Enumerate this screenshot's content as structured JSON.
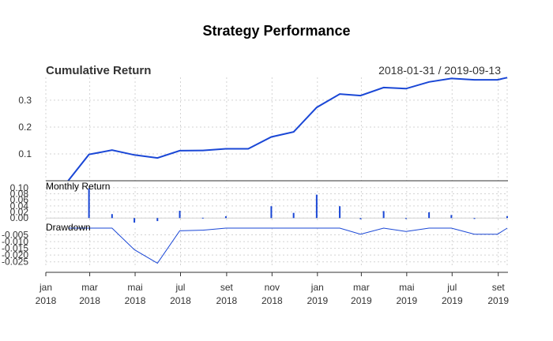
{
  "title": "Strategy Performance",
  "date_range": "2018-01-31 / 2019-09-13",
  "colors": {
    "line": "#1a47d6",
    "grid": "#d3d3d3",
    "axis": "#333333"
  },
  "x_axis": {
    "labels": [
      {
        "date": "2018-01-01",
        "month": "jan",
        "year": "2018"
      },
      {
        "date": "2018-03-01",
        "month": "mar",
        "year": "2018"
      },
      {
        "date": "2018-05-01",
        "month": "mai",
        "year": "2018"
      },
      {
        "date": "2018-07-01",
        "month": "jul",
        "year": "2018"
      },
      {
        "date": "2018-09-01",
        "month": "set",
        "year": "2018"
      },
      {
        "date": "2018-11-01",
        "month": "nov",
        "year": "2018"
      },
      {
        "date": "2019-01-01",
        "month": "jan",
        "year": "2019"
      },
      {
        "date": "2019-03-01",
        "month": "mar",
        "year": "2019"
      },
      {
        "date": "2019-05-01",
        "month": "mai",
        "year": "2019"
      },
      {
        "date": "2019-07-01",
        "month": "jul",
        "year": "2019"
      },
      {
        "date": "2019-09-01",
        "month": "set",
        "year": "2019"
      }
    ]
  },
  "chart_data": [
    {
      "type": "line",
      "title": "Cumulative Return",
      "x": [
        "2018-01-31",
        "2018-02-28",
        "2018-03-31",
        "2018-04-30",
        "2018-05-31",
        "2018-06-30",
        "2018-07-31",
        "2018-08-31",
        "2018-09-30",
        "2018-10-31",
        "2018-11-30",
        "2018-12-31",
        "2019-01-31",
        "2019-02-28",
        "2019-03-31",
        "2019-04-30",
        "2019-05-31",
        "2019-06-30",
        "2019-07-31",
        "2019-08-31",
        "2019-09-13"
      ],
      "series": [
        {
          "values": [
            0.0,
            0.098,
            0.114,
            0.096,
            0.085,
            0.112,
            0.113,
            0.119,
            0.119,
            0.163,
            0.182,
            0.273,
            0.323,
            0.317,
            0.347,
            0.343,
            0.368,
            0.381,
            0.376,
            0.376,
            0.384
          ]
        }
      ],
      "yticks": [
        "0.1",
        "0.2",
        "0.3"
      ],
      "ylim": [
        0.0,
        0.385
      ],
      "grid": true
    },
    {
      "type": "bar",
      "title": "Monthly Return",
      "x": [
        "2018-01-31",
        "2018-02-28",
        "2018-03-31",
        "2018-04-30",
        "2018-05-31",
        "2018-06-30",
        "2018-07-31",
        "2018-08-31",
        "2018-09-30",
        "2018-10-31",
        "2018-11-30",
        "2018-12-31",
        "2019-01-31",
        "2019-02-28",
        "2019-03-31",
        "2019-04-30",
        "2019-05-31",
        "2019-06-30",
        "2019-07-31",
        "2019-08-31",
        "2019-09-13"
      ],
      "values": [
        0.0,
        0.098,
        0.013,
        -0.015,
        -0.01,
        0.024,
        0.001,
        0.006,
        0.0,
        0.039,
        0.017,
        0.077,
        0.039,
        -0.004,
        0.023,
        -0.003,
        0.019,
        0.01,
        -0.003,
        0.0,
        0.006
      ],
      "yticks": [
        "0.00",
        "0.02",
        "0.04",
        "0.06",
        "0.08",
        "0.10"
      ],
      "ylim": [
        -0.015,
        0.102
      ],
      "grid": true
    },
    {
      "type": "line",
      "title": "Drawdown",
      "x": [
        "2018-01-31",
        "2018-02-28",
        "2018-03-31",
        "2018-04-30",
        "2018-05-31",
        "2018-06-30",
        "2018-07-31",
        "2018-08-31",
        "2018-09-30",
        "2018-10-31",
        "2018-11-30",
        "2018-12-31",
        "2019-01-31",
        "2019-02-28",
        "2019-03-31",
        "2019-04-30",
        "2019-05-31",
        "2019-06-30",
        "2019-07-31",
        "2019-08-31",
        "2019-09-13"
      ],
      "series": [
        {
          "values": [
            0.0,
            0.0,
            0.0,
            -0.016,
            -0.026,
            -0.002,
            -0.0015,
            0.0,
            0.0,
            0.0,
            0.0,
            0.0,
            0.0,
            -0.0045,
            0.0,
            -0.0025,
            0.0,
            0.0,
            -0.0045,
            -0.0045,
            0.0
          ]
        }
      ],
      "yticks": [
        "-0.005",
        "-0.010",
        "-0.015",
        "-0.020",
        "-0.025"
      ],
      "ylim": [
        -0.0275,
        0.0
      ],
      "grid": true
    }
  ]
}
